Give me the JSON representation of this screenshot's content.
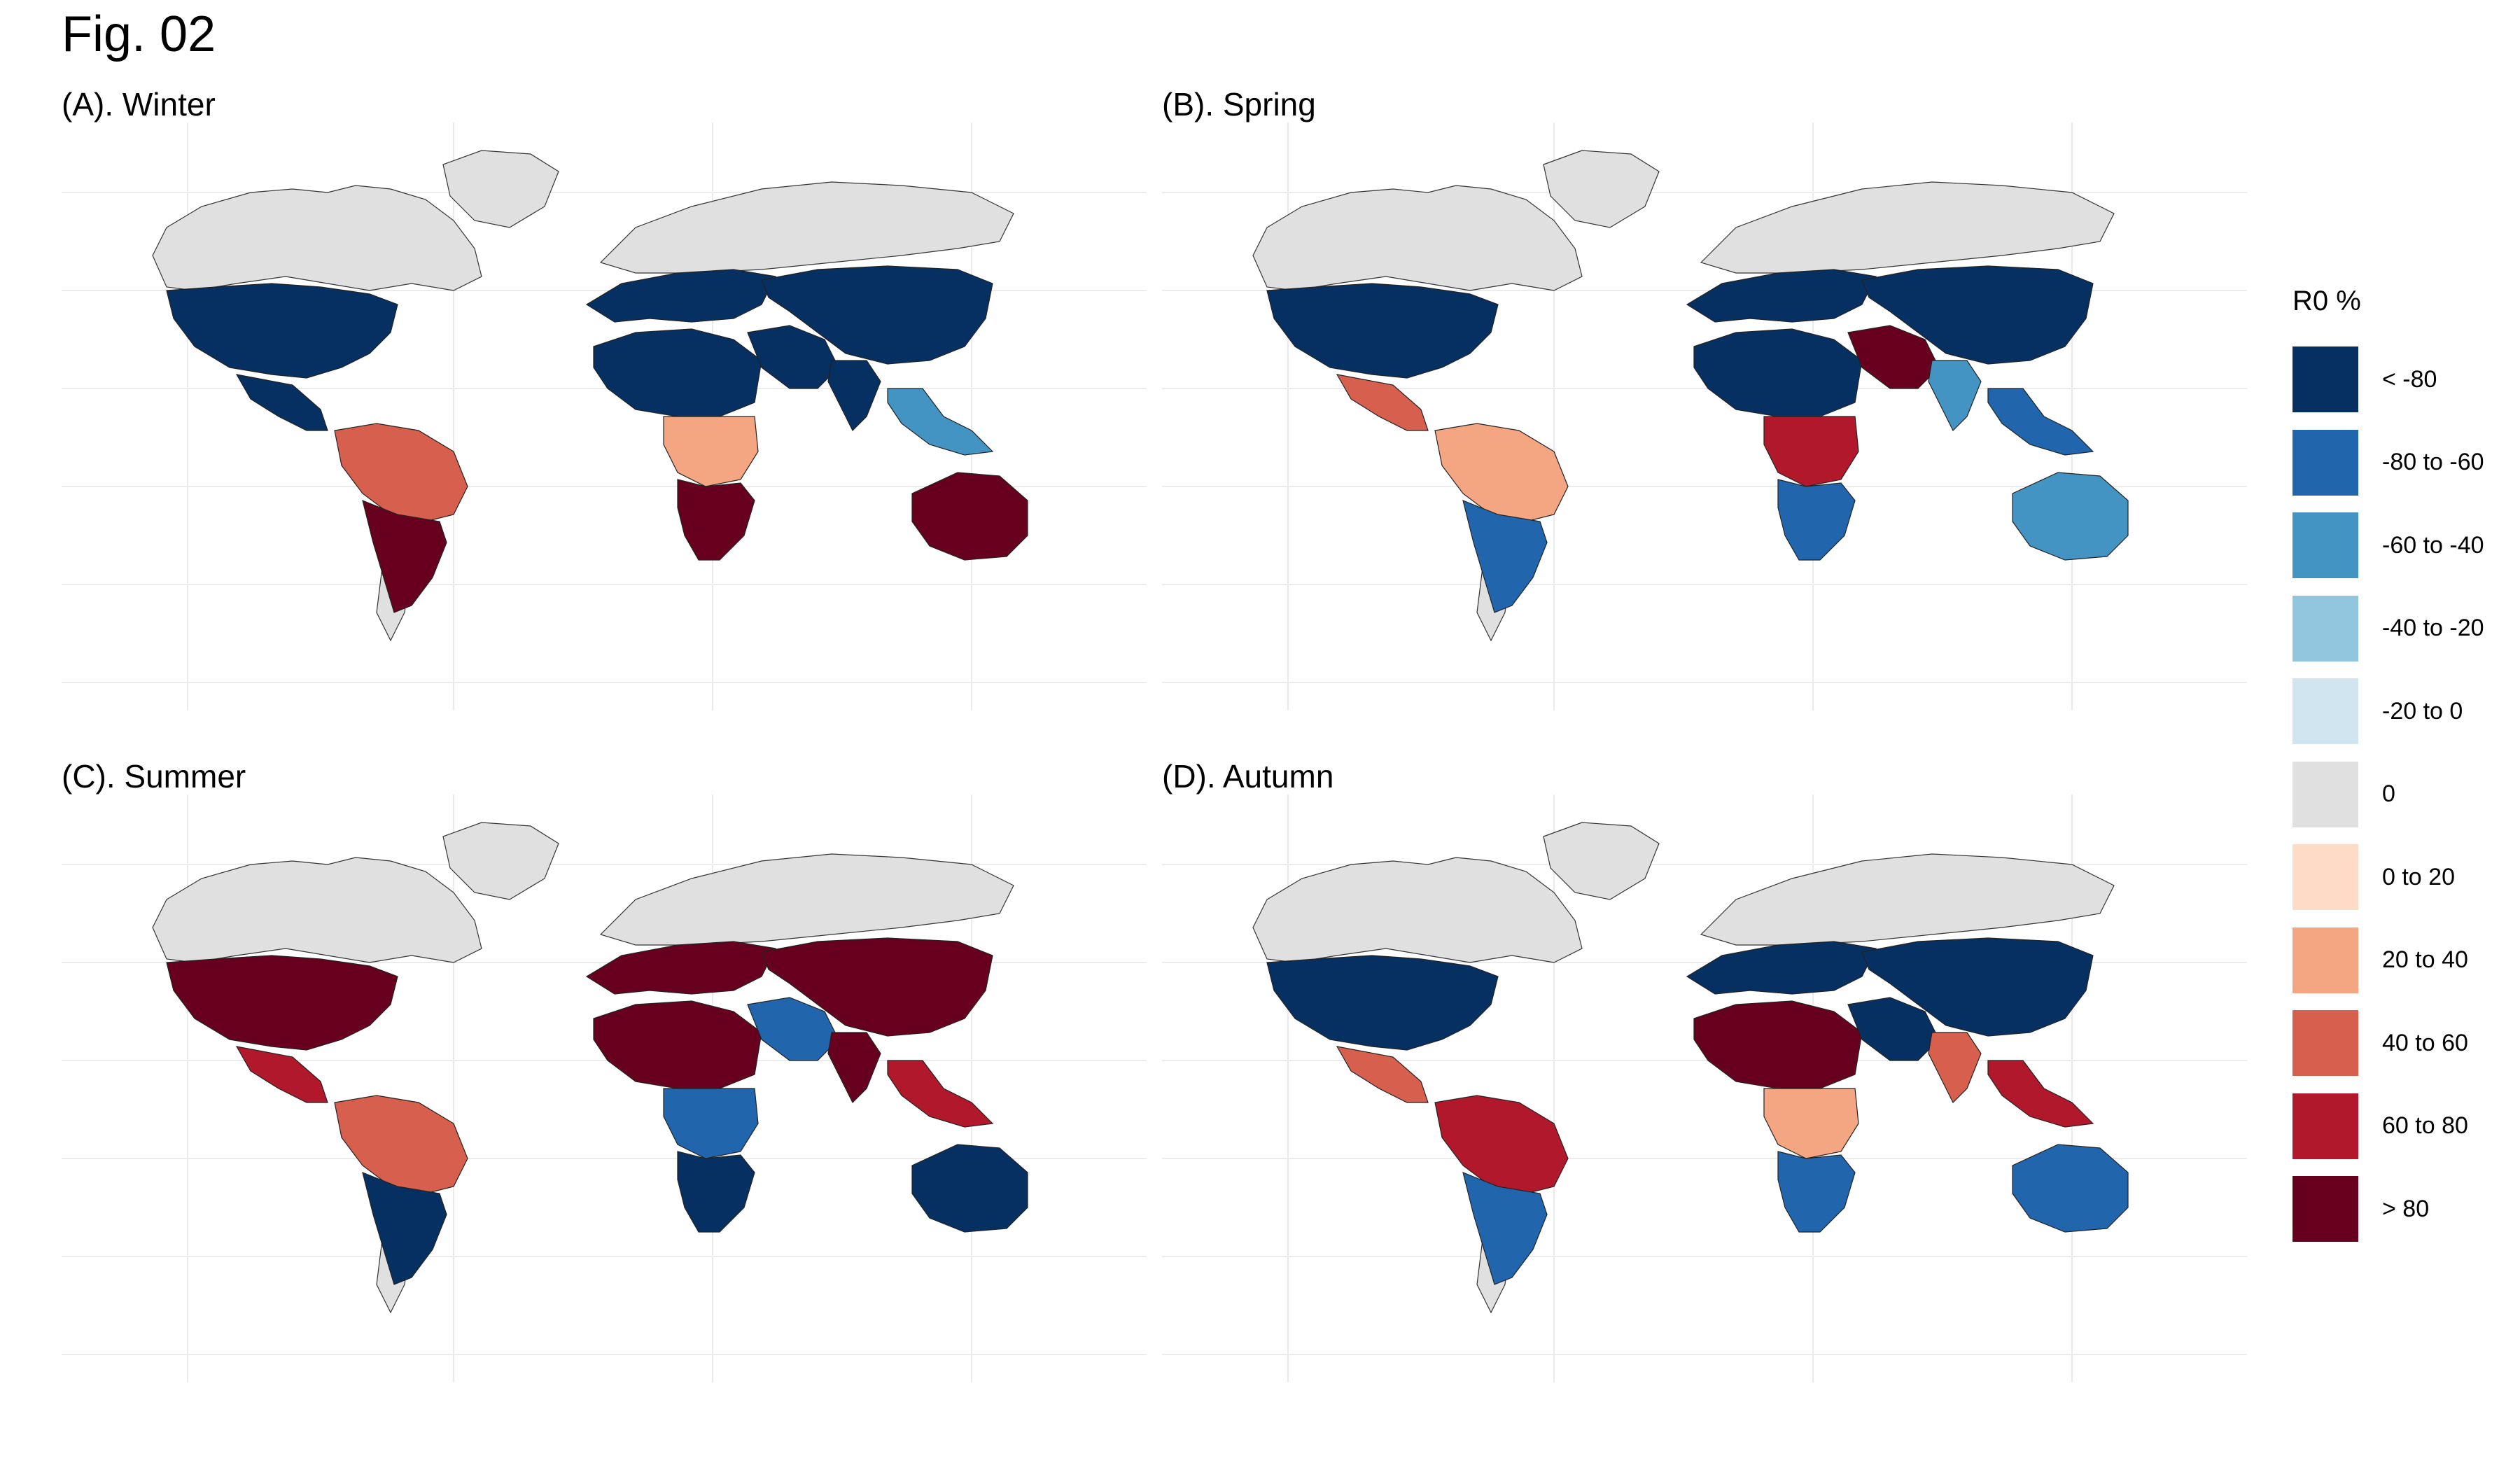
{
  "figure_title": "Fig. 02",
  "legend": {
    "title": "R0 %",
    "items": [
      {
        "label": "< -80",
        "color": "#053061"
      },
      {
        "label": "-80 to -60",
        "color": "#2166ac"
      },
      {
        "label": "-60 to -40",
        "color": "#4393c3"
      },
      {
        "label": "-40 to -20",
        "color": "#92c5de"
      },
      {
        "label": "-20 to 0",
        "color": "#d1e5f0"
      },
      {
        "label": "0",
        "color": "#e0e0e0"
      },
      {
        "label": "0 to 20",
        "color": "#fddbc7"
      },
      {
        "label": "20 to 40",
        "color": "#f4a582"
      },
      {
        "label": "40 to 60",
        "color": "#d6604d"
      },
      {
        "label": "60 to 80",
        "color": "#b2182b"
      },
      {
        "label": "> 80",
        "color": "#67001f"
      }
    ]
  },
  "panels": [
    {
      "title": "(A). Winter",
      "regions": {
        "na": "#053061",
        "ca": "#053061",
        "sa_n": "#d6604d",
        "sa_s": "#67001f",
        "eu": "#053061",
        "af_n": "#053061",
        "af_c": "#f4a582",
        "af_s": "#67001f",
        "me": "#053061",
        "asia": "#053061",
        "in": "#053061",
        "sea": "#4393c3",
        "au": "#67001f"
      }
    },
    {
      "title": "(B). Spring",
      "regions": {
        "na": "#053061",
        "ca": "#d6604d",
        "sa_n": "#f4a582",
        "sa_s": "#2166ac",
        "eu": "#053061",
        "af_n": "#053061",
        "af_c": "#b2182b",
        "af_s": "#2166ac",
        "me": "#67001f",
        "asia": "#053061",
        "in": "#4393c3",
        "sea": "#2166ac",
        "au": "#4393c3"
      }
    },
    {
      "title": "(C). Summer",
      "regions": {
        "na": "#67001f",
        "ca": "#b2182b",
        "sa_n": "#d6604d",
        "sa_s": "#053061",
        "eu": "#67001f",
        "af_n": "#67001f",
        "af_c": "#2166ac",
        "af_s": "#053061",
        "me": "#2166ac",
        "asia": "#67001f",
        "in": "#67001f",
        "sea": "#b2182b",
        "au": "#053061"
      }
    },
    {
      "title": "(D). Autumn",
      "regions": {
        "na": "#053061",
        "ca": "#d6604d",
        "sa_n": "#b2182b",
        "sa_s": "#2166ac",
        "eu": "#053061",
        "af_n": "#67001f",
        "af_c": "#f4a582",
        "af_s": "#2166ac",
        "me": "#053061",
        "asia": "#053061",
        "in": "#d6604d",
        "sea": "#b2182b",
        "au": "#2166ac"
      }
    }
  ]
}
